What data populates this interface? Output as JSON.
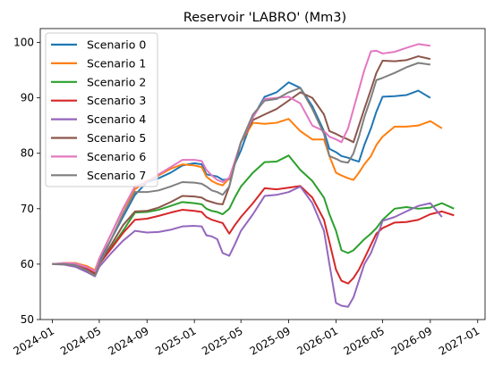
{
  "chart_data": {
    "type": "line",
    "title": "Reservoir 'LABRO' (Mm3)",
    "xlabel": "",
    "ylabel": "",
    "xlim": [
      "2023-12-01",
      "2027-01-20"
    ],
    "ylim": [
      50,
      102.5
    ],
    "x_ticks": [
      "2024-01",
      "2024-05",
      "2024-09",
      "2025-01",
      "2025-05",
      "2025-09",
      "2026-01",
      "2026-05",
      "2026-09",
      "2027-01"
    ],
    "y_ticks": [
      50,
      60,
      70,
      80,
      90,
      100
    ],
    "grid": false,
    "legend_position": "top-left",
    "x": [
      "2024-01-01",
      "2024-02-01",
      "2024-03-01",
      "2024-04-01",
      "2024-04-20",
      "2024-05-01",
      "2024-06-01",
      "2024-07-01",
      "2024-08-01",
      "2024-09-01",
      "2024-10-01",
      "2024-11-01",
      "2024-12-01",
      "2025-01-01",
      "2025-01-20",
      "2025-02-01",
      "2025-02-15",
      "2025-03-01",
      "2025-03-15",
      "2025-04-01",
      "2025-04-15",
      "2025-05-01",
      "2025-06-01",
      "2025-07-01",
      "2025-08-01",
      "2025-09-01",
      "2025-10-01",
      "2025-11-01",
      "2025-12-01",
      "2025-12-15",
      "2026-01-01",
      "2026-01-15",
      "2026-02-01",
      "2026-02-15",
      "2026-03-01",
      "2026-03-15",
      "2026-04-01",
      "2026-04-15",
      "2026-05-01",
      "2026-06-01",
      "2026-07-01",
      "2026-08-01",
      "2026-09-01",
      "2026-10-01",
      "2026-11-01",
      "2026-12-01",
      "2026-12-10"
    ],
    "series": [
      {
        "name": "Scenario 0",
        "color": "#1f77b4",
        "values": [
          60.0,
          60.1,
          60.0,
          59.1,
          58.5,
          60.5,
          64.5,
          68.5,
          72.5,
          74.8,
          75.5,
          76.5,
          77.8,
          78.2,
          78.0,
          76.2,
          76.0,
          75.8,
          75.2,
          75.3,
          78.0,
          80.5,
          86.5,
          90.2,
          91.0,
          92.8,
          91.8,
          88.5,
          84.0,
          80.8,
          80.2,
          79.5,
          79.2,
          78.8,
          78.5,
          81.5,
          84.5,
          87.5,
          90.2,
          90.3,
          90.5,
          91.3,
          90.0,
          null,
          null,
          null,
          null
        ]
      },
      {
        "name": "Scenario 1",
        "color": "#ff7f0e",
        "values": [
          60.0,
          60.2,
          60.2,
          59.6,
          58.9,
          61.0,
          65.5,
          69.8,
          73.5,
          75.0,
          76.0,
          77.2,
          78.0,
          77.8,
          77.5,
          75.8,
          75.0,
          74.5,
          74.2,
          75.5,
          78.0,
          82.0,
          85.5,
          85.3,
          85.5,
          86.2,
          84.0,
          82.5,
          82.5,
          79.5,
          76.5,
          76.0,
          75.5,
          75.2,
          76.5,
          78.0,
          79.5,
          81.5,
          83.0,
          84.8,
          84.8,
          85.0,
          85.8,
          84.5,
          null,
          null,
          null
        ]
      },
      {
        "name": "Scenario 2",
        "color": "#2ca02c",
        "values": [
          60.0,
          60.1,
          60.0,
          59.3,
          58.4,
          60.0,
          63.0,
          66.0,
          69.3,
          69.4,
          69.8,
          70.5,
          71.2,
          71.0,
          70.8,
          70.0,
          69.6,
          69.4,
          69.0,
          70.0,
          72.0,
          74.0,
          76.5,
          78.4,
          78.5,
          79.6,
          77.0,
          75.0,
          72.0,
          69.0,
          66.0,
          62.5,
          62.0,
          62.5,
          63.5,
          64.5,
          65.5,
          66.5,
          68.0,
          70.0,
          70.3,
          70.0,
          70.2,
          71.0,
          70.0,
          null,
          null
        ]
      },
      {
        "name": "Scenario 3",
        "color": "#d62728",
        "values": [
          60.0,
          60.1,
          59.9,
          59.2,
          58.2,
          60.0,
          62.8,
          65.6,
          68.0,
          68.2,
          68.7,
          69.3,
          69.8,
          69.6,
          69.4,
          68.5,
          68.0,
          67.7,
          67.4,
          65.5,
          67.0,
          68.5,
          71.0,
          73.7,
          73.5,
          73.8,
          74.1,
          72.0,
          68.0,
          64.0,
          59.0,
          57.0,
          56.5,
          57.5,
          59.0,
          61.0,
          63.5,
          65.5,
          66.5,
          67.5,
          67.6,
          68.0,
          69.0,
          69.5,
          68.8,
          null,
          null
        ]
      },
      {
        "name": "Scenario 4",
        "color": "#9467bd",
        "values": [
          60.0,
          59.9,
          59.5,
          58.5,
          57.8,
          59.5,
          62.0,
          64.2,
          66.0,
          65.7,
          65.8,
          66.2,
          66.8,
          66.9,
          66.8,
          65.2,
          65.0,
          64.5,
          62.0,
          61.5,
          63.5,
          66.0,
          69.0,
          72.3,
          72.5,
          73.0,
          74.0,
          71.0,
          66.0,
          60.0,
          53.0,
          52.5,
          52.3,
          54.0,
          57.0,
          60.0,
          62.0,
          64.5,
          67.8,
          68.5,
          69.5,
          70.5,
          71.0,
          68.5,
          null,
          null,
          null
        ]
      },
      {
        "name": "Scenario 5",
        "color": "#8c564b",
        "values": [
          60.0,
          60.0,
          59.8,
          58.8,
          58.0,
          60.0,
          63.5,
          67.0,
          69.5,
          69.6,
          70.2,
          71.2,
          72.3,
          72.2,
          72.0,
          71.5,
          71.2,
          70.9,
          70.8,
          74.0,
          78.0,
          82.0,
          86.0,
          87.0,
          88.0,
          89.5,
          91.0,
          90.0,
          87.0,
          84.0,
          83.5,
          83.0,
          82.5,
          82.0,
          85.0,
          88.0,
          91.5,
          94.5,
          96.7,
          96.6,
          96.8,
          97.5,
          97.0,
          null,
          null,
          null,
          null
        ]
      },
      {
        "name": "Scenario 6",
        "color": "#e377c2",
        "values": [
          60.0,
          60.2,
          60.1,
          59.4,
          58.7,
          61.0,
          65.5,
          70.0,
          74.0,
          74.8,
          76.2,
          77.5,
          78.8,
          78.8,
          78.6,
          77.0,
          76.0,
          75.2,
          74.8,
          75.6,
          78.5,
          82.0,
          86.5,
          89.8,
          90.0,
          90.2,
          89.0,
          85.0,
          84.0,
          83.0,
          82.5,
          82.0,
          84.5,
          88.0,
          91.5,
          95.0,
          98.4,
          98.5,
          98.0,
          98.3,
          99.0,
          99.7,
          99.4,
          null,
          null,
          null,
          null
        ]
      },
      {
        "name": "Scenario 7",
        "color": "#7f7f7f",
        "values": [
          60.0,
          60.0,
          59.8,
          58.8,
          57.9,
          60.0,
          64.5,
          69.0,
          73.0,
          73.0,
          73.3,
          74.0,
          74.8,
          74.7,
          74.5,
          74.0,
          73.3,
          73.0,
          72.5,
          74.0,
          78.0,
          82.0,
          87.0,
          89.5,
          89.8,
          91.0,
          91.8,
          88.0,
          83.5,
          79.5,
          79.0,
          78.5,
          78.3,
          80.0,
          83.0,
          86.5,
          90.0,
          93.2,
          93.6,
          94.5,
          95.5,
          96.3,
          96.0,
          null,
          null,
          null,
          null
        ]
      }
    ]
  }
}
